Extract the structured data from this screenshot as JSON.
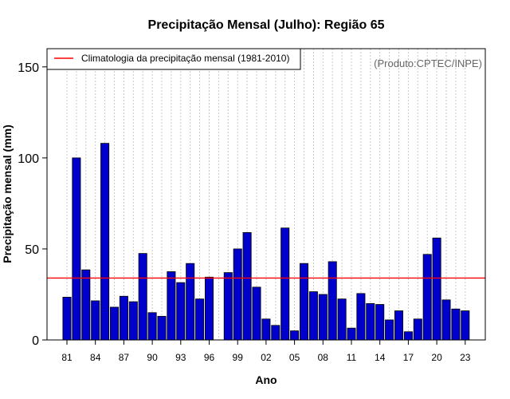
{
  "chart_data": {
    "type": "bar",
    "title": "Precipitação Mensal (Julho): Região 65",
    "xlabel": "Ano",
    "ylabel": "Precipitação mensal (mm)",
    "ylim": [
      0,
      160
    ],
    "yticks": [
      0,
      50,
      100,
      150
    ],
    "grid": "vertical dotted",
    "legend_position": "top-left",
    "legend_label": "Climatologia da precipitação mensal (1981-2010)",
    "credit": "(Produto:CPTEC/INPE)",
    "climatology": 34,
    "categories": [
      "81",
      "82",
      "83",
      "84",
      "85",
      "86",
      "87",
      "88",
      "89",
      "90",
      "91",
      "92",
      "93",
      "94",
      "95",
      "96",
      "97",
      "98",
      "99",
      "00",
      "01",
      "02",
      "03",
      "04",
      "05",
      "06",
      "07",
      "08",
      "09",
      "10",
      "11",
      "12",
      "13",
      "14",
      "15",
      "16",
      "17",
      "18",
      "19",
      "20",
      "21",
      "22",
      "23"
    ],
    "tick_labels": [
      "81",
      "84",
      "87",
      "90",
      "93",
      "96",
      "99",
      "02",
      "05",
      "08",
      "11",
      "14",
      "17",
      "20",
      "23"
    ],
    "values": [
      23.5,
      100,
      38.5,
      21.5,
      108,
      18,
      24,
      21,
      47.5,
      15,
      13,
      37.5,
      31.5,
      42,
      22.5,
      34.5,
      null,
      37,
      50,
      59,
      29,
      11.5,
      8,
      61.5,
      5,
      42,
      26.5,
      25,
      43,
      22.5,
      6.5,
      25.5,
      20,
      19.5,
      11,
      16,
      4.5,
      11.5,
      47,
      56,
      22,
      17,
      16
    ],
    "colors": {
      "bar": "#0000cc",
      "bar_edge": "#000000",
      "climatology_line": "#ff0000",
      "grid": "#c8c8c8"
    }
  }
}
